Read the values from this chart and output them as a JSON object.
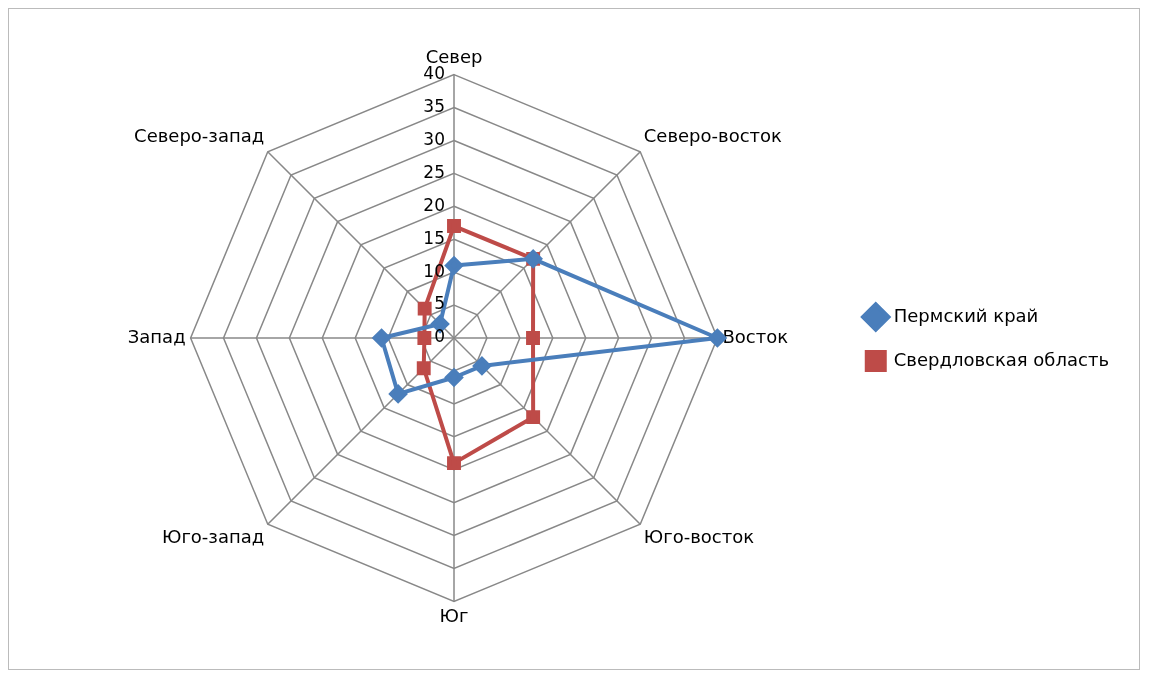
{
  "chart_data": {
    "type": "radar",
    "categories": [
      "Север",
      "Северо-восток",
      "Восток",
      "Юго-восток",
      "Юг",
      "Юго-запад",
      "Запад",
      "Северо-запад"
    ],
    "series": [
      {
        "name": "Пермский край",
        "color": "#4a7ebb",
        "marker": "diamond",
        "values": [
          11,
          17,
          40,
          6,
          6,
          12,
          11,
          3
        ]
      },
      {
        "name": "Свердловская область",
        "color": "#be4b48",
        "marker": "square",
        "values": [
          17,
          17,
          12,
          17,
          19,
          6.5,
          4.5,
          6.3
        ]
      }
    ],
    "ylim": [
      0,
      40
    ],
    "yticks": [
      0,
      5,
      10,
      15,
      20,
      25,
      30,
      35,
      40
    ],
    "grid": true,
    "legend": "right"
  }
}
